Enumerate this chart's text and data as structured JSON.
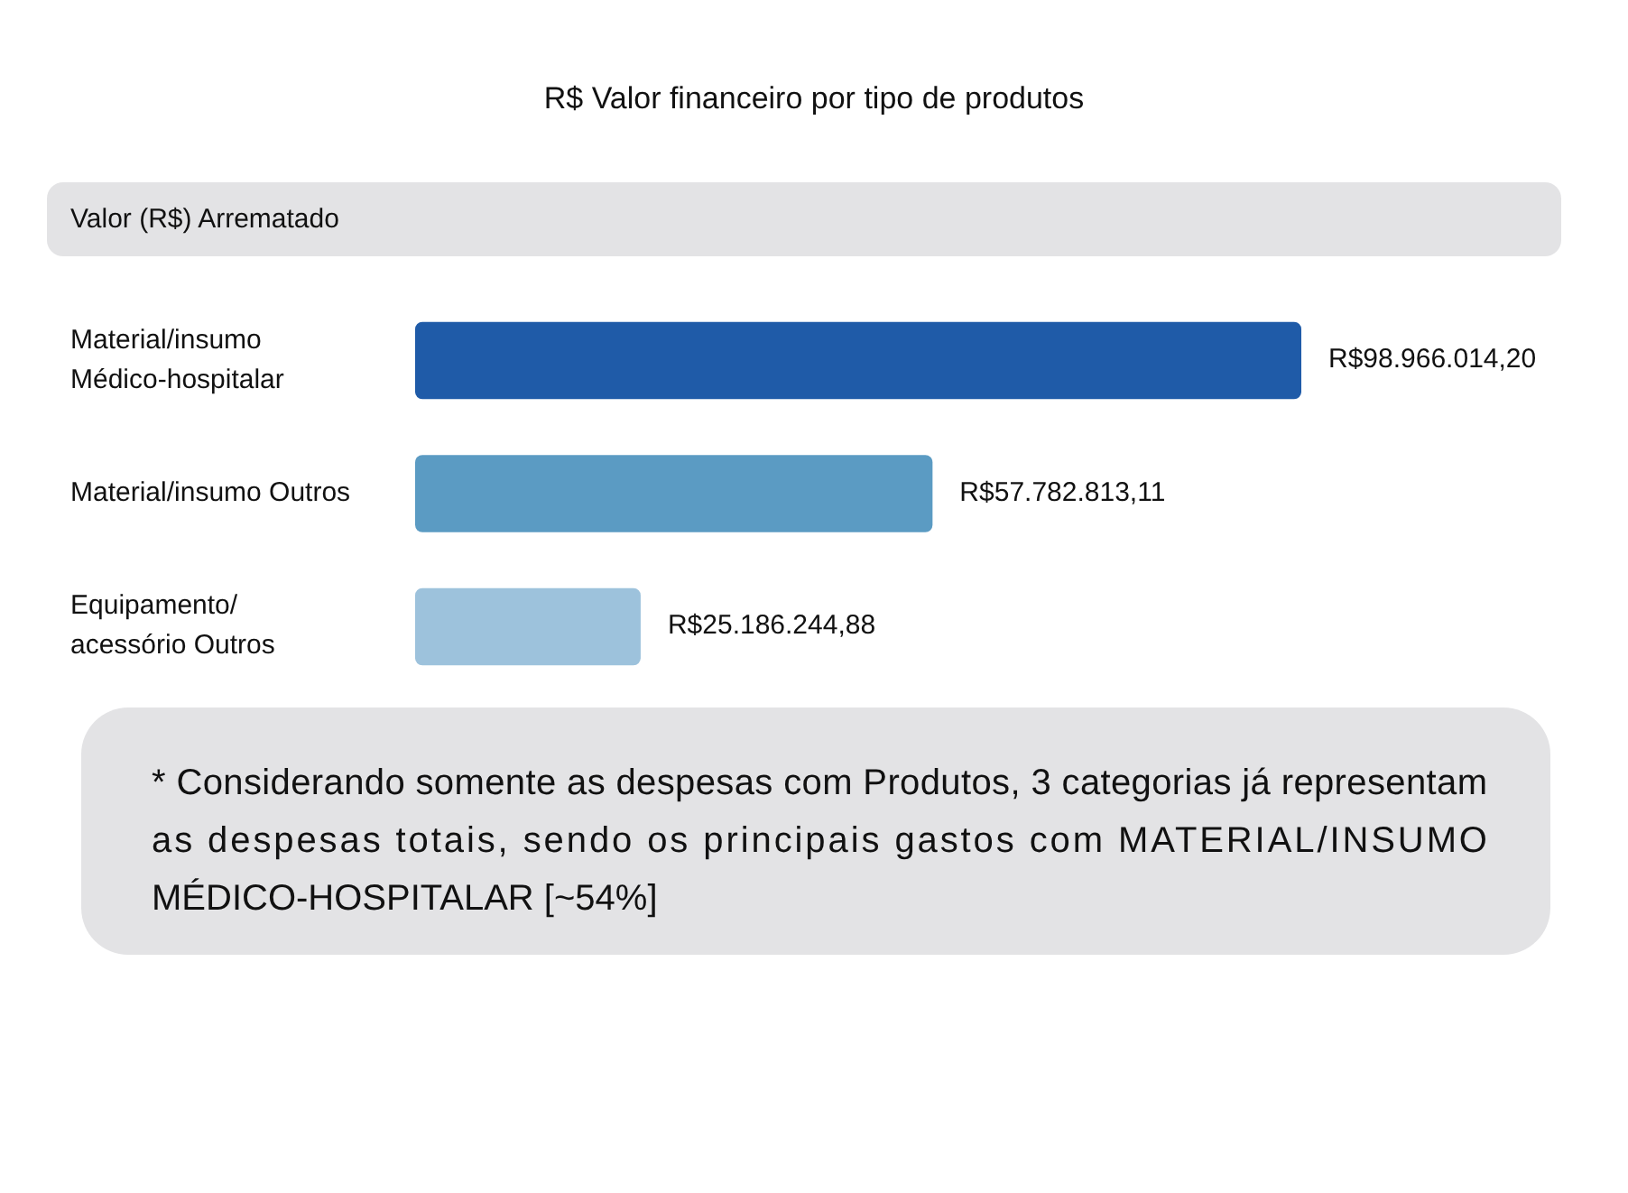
{
  "chart_data": {
    "type": "bar",
    "orientation": "horizontal",
    "title": "R$ Valor financeiro por tipo de produtos",
    "subtitle": "Valor (R$) Arrematado",
    "categories": [
      "Material/insumo\nMédico-hospitalar",
      "Material/insumo Outros",
      "Equipamento/\nacessório Outros"
    ],
    "values": [
      98966014.2,
      57782813.11,
      25186244.88
    ],
    "colors": [
      "#1f5ba8",
      "#5b9bc3",
      "#9dc2dc"
    ],
    "value_labels": [
      "R$98.966.014,20",
      "R$57.782.813,11",
      "R$25.186.244,88"
    ],
    "annotations": [
      "* Considerando somente as despesas com Produtos, 3 categorias já representam as despesas totais, sendo os principais gastos com MATERIAL/INSUMO MÉDICO-HOSPITALAR [~54%]"
    ]
  }
}
